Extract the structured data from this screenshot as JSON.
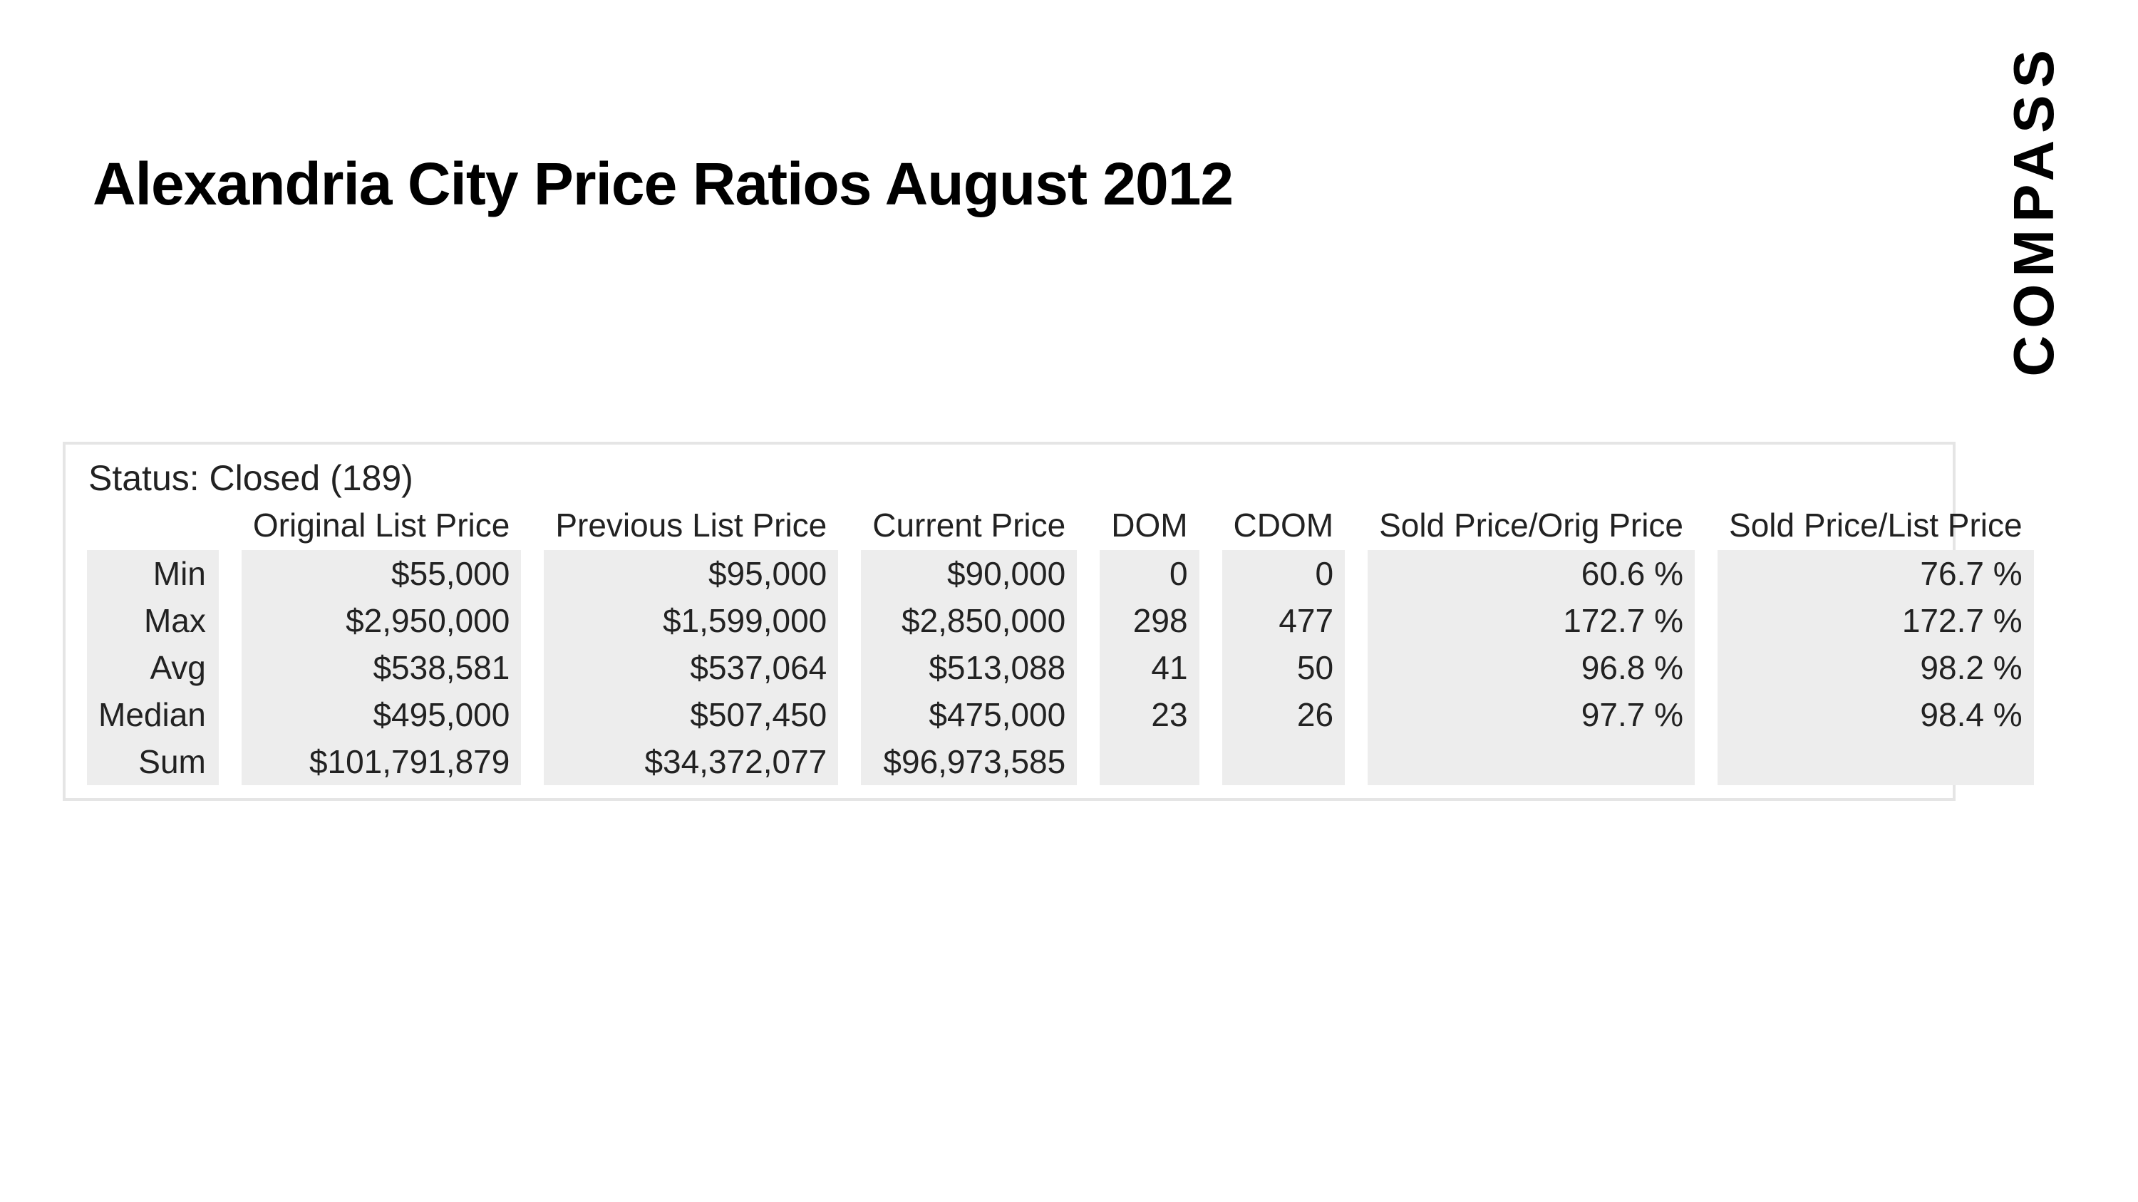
{
  "title": "Alexandria City Price Ratios August 2012",
  "logo_text": "COMPASS",
  "table": {
    "status_label": "Status: Closed (189)",
    "columns": [
      "",
      "Original List Price",
      "Previous List Price",
      "Current Price",
      "DOM",
      "CDOM",
      "Sold Price/Orig Price",
      "Sold Price/List Price"
    ],
    "row_labels": [
      "Min",
      "Max",
      "Avg",
      "Median",
      "Sum"
    ],
    "rows": {
      "Min": [
        "$55,000",
        "$95,000",
        "$90,000",
        "0",
        "0",
        "60.6 %",
        "76.7 %"
      ],
      "Max": [
        "$2,950,000",
        "$1,599,000",
        "$2,850,000",
        "298",
        "477",
        "172.7 %",
        "172.7 %"
      ],
      "Avg": [
        "$538,581",
        "$537,064",
        "$513,088",
        "41",
        "50",
        "96.8 %",
        "98.2 %"
      ],
      "Median": [
        "$495,000",
        "$507,450",
        "$475,000",
        "23",
        "26",
        "97.7 %",
        "98.4 %"
      ],
      "Sum": [
        "$101,791,879",
        "$34,372,077",
        "$96,973,585",
        "",
        "",
        "",
        ""
      ]
    },
    "colors": {
      "row_bg": "#ededed",
      "border": "#e5e5e5",
      "text": "#222222",
      "background": "#ffffff"
    },
    "font_sizes": {
      "title_pt": 63,
      "status_pt": 37,
      "table_pt": 35
    }
  }
}
